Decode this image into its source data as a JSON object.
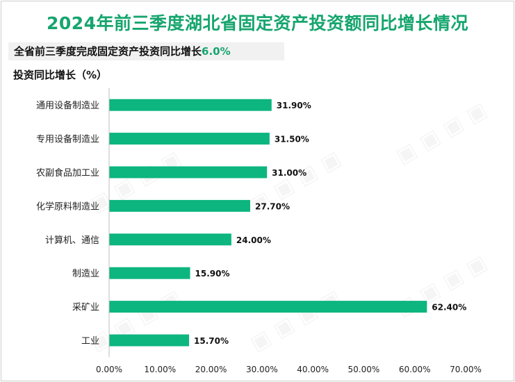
{
  "title": "2024年前三季度湖北省固定资产投资额同比增长情况",
  "summary": {
    "label": "全省前三季度完成固定资产投资同比增长",
    "value": "6.0%"
  },
  "colors": {
    "bar": "#0db57f",
    "accent": "#16a56e"
  },
  "chart_data": {
    "type": "bar",
    "orientation": "horizontal",
    "title": "2024年前三季度湖北省固定资产投资额同比增长情况",
    "ylabel": "投资同比增长（%）",
    "categories": [
      "通用设备制造业",
      "专用设备制造业",
      "农副食品加工业",
      "化学原料制造业",
      "计算机、通信",
      "制造业",
      "采矿业",
      "工业"
    ],
    "values": [
      31.9,
      31.5,
      31.0,
      27.7,
      24.0,
      15.9,
      62.4,
      15.7
    ],
    "data_labels": [
      "31.90%",
      "31.50%",
      "31.00%",
      "27.70%",
      "24.00%",
      "15.90%",
      "62.40%",
      "15.70%"
    ],
    "xlim": [
      0,
      70
    ],
    "xticks": [
      "0.00%",
      "10.00%",
      "20.00%",
      "30.00%",
      "40.00%",
      "50.00%",
      "60.00%",
      "70.00%"
    ],
    "grid": false,
    "legend": "none"
  }
}
